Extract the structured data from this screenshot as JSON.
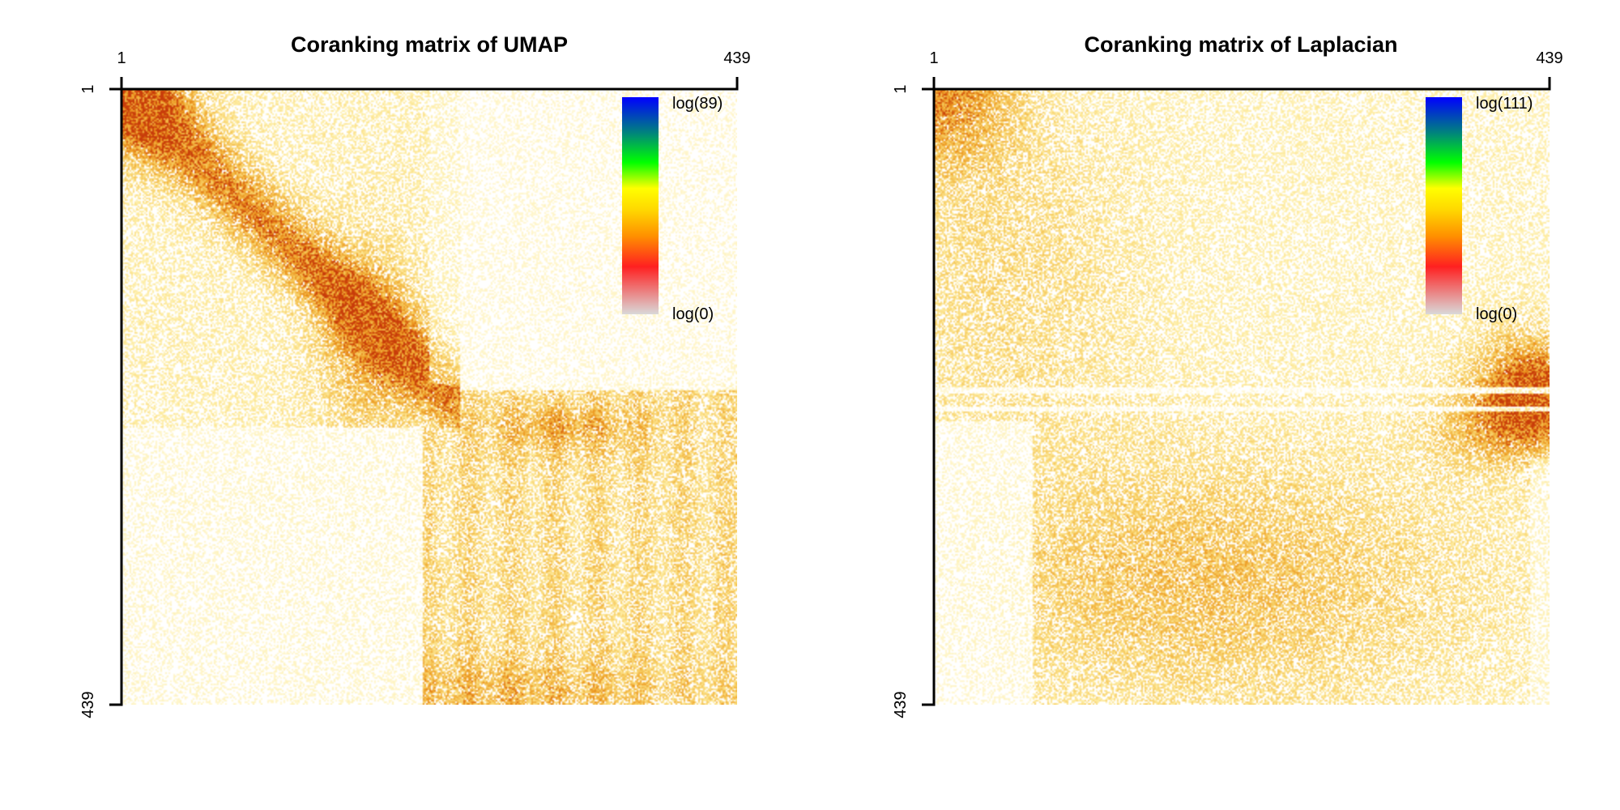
{
  "chart_data": [
    {
      "type": "heatmap",
      "title": "Coranking matrix of UMAP",
      "n": 439,
      "x_ticks": [
        "1",
        "439"
      ],
      "y_ticks": [
        "1",
        "439"
      ],
      "xlim": [
        1,
        439
      ],
      "ylim": [
        1,
        439
      ],
      "y_reversed": true,
      "x_axis_position": "top",
      "colorbar": {
        "position": "top-right",
        "max_label": "log(89)",
        "min_label": "log(0)",
        "colors": [
          "#d9d9d9",
          "#ff0000",
          "#ffd700",
          "#ffff00",
          "#00ff00",
          "#0000ff"
        ]
      },
      "structure": "concentrated along the diagonal in the upper-left block; dense rectangular block for rows/columns ~210-439"
    },
    {
      "type": "heatmap",
      "title": "Coranking matrix of Laplacian",
      "n": 439,
      "x_ticks": [
        "1",
        "439"
      ],
      "y_ticks": [
        "1",
        "439"
      ],
      "xlim": [
        1,
        439
      ],
      "ylim": [
        1,
        439
      ],
      "y_reversed": true,
      "x_axis_position": "top",
      "colorbar": {
        "position": "top-right",
        "max_label": "log(111)",
        "min_label": "log(0)",
        "colors": [
          "#d9d9d9",
          "#ff0000",
          "#ffd700",
          "#ffff00",
          "#00ff00",
          "#0000ff"
        ]
      },
      "structure": "diffuse spread over the whole matrix with a hot spot at the top-left corner and at the right edge around rows ~210-240"
    }
  ]
}
